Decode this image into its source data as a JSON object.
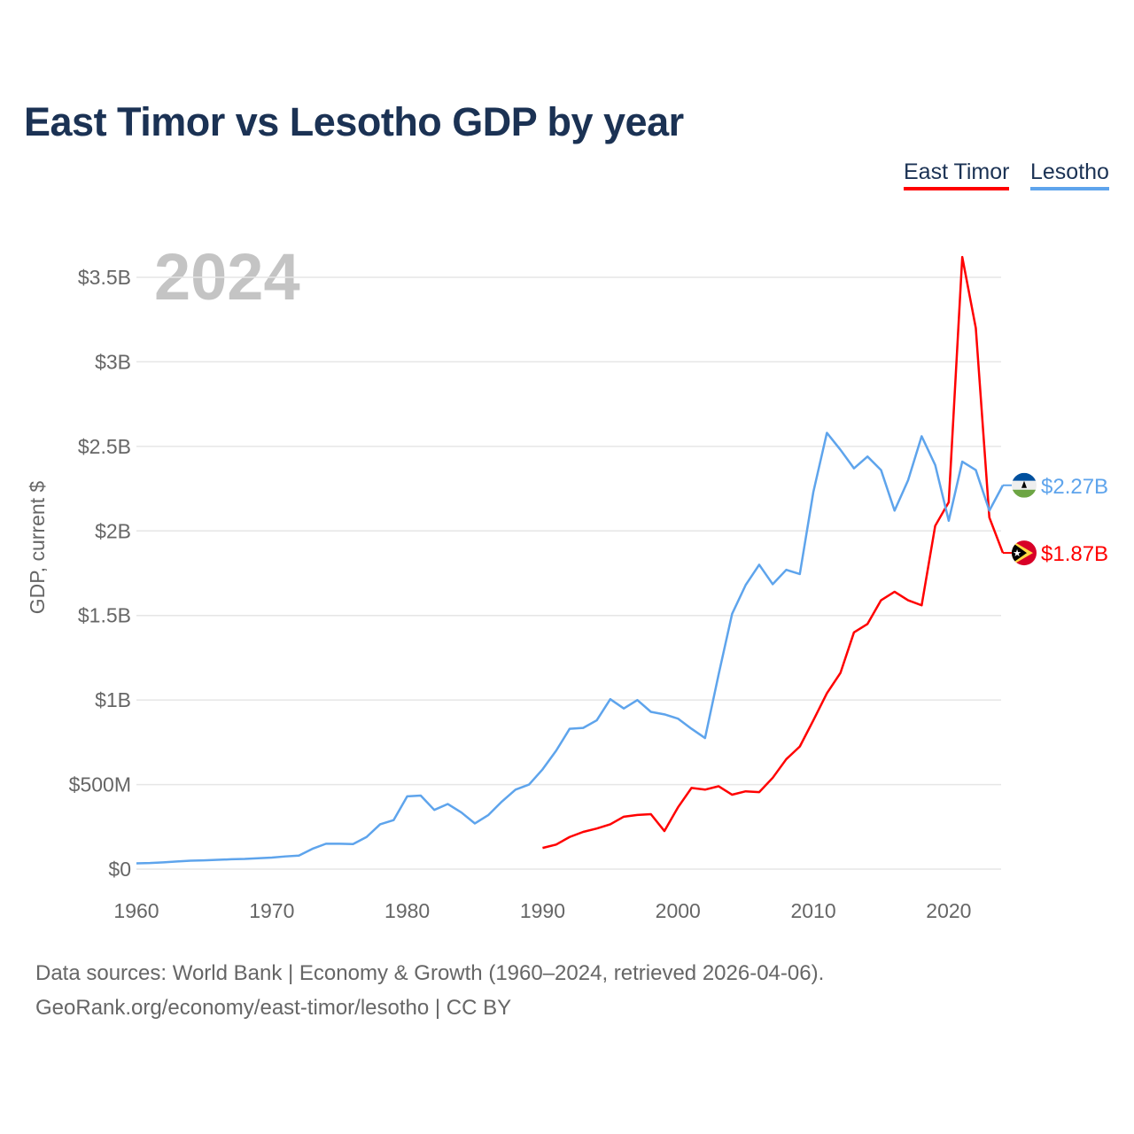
{
  "chart_data": {
    "type": "line",
    "title": "East Timor vs Lesotho GDP by year",
    "ylabel": "GDP, current $",
    "xlabel": "",
    "year_label": "2024",
    "xlim": [
      1960,
      2024
    ],
    "ylim": [
      0,
      3.5
    ],
    "x_ticks": [
      1960,
      1970,
      1980,
      1990,
      2000,
      2010,
      2020
    ],
    "x_tick_labels": [
      "1960",
      "1970",
      "1980",
      "1990",
      "2000",
      "2010",
      "2020"
    ],
    "y_ticks": [
      0,
      0.5,
      1,
      1.5,
      2,
      2.5,
      3,
      3.5
    ],
    "y_tick_labels": [
      "$0",
      "$500M",
      "$1B",
      "$1.5B",
      "$2B",
      "$2.5B",
      "$3B",
      "$3.5B"
    ],
    "grid": true,
    "legend_position": "top-right",
    "units": "billions USD",
    "series": [
      {
        "name": "East Timor",
        "color": "#ff0000",
        "end_label": "$1.87B",
        "flag": "east-timor-flag",
        "start_year": 1990,
        "values": [
          0.125,
          0.145,
          0.19,
          0.22,
          0.24,
          0.265,
          0.31,
          0.32,
          0.325,
          0.225,
          0.365,
          0.48,
          0.47,
          0.49,
          0.44,
          0.46,
          0.455,
          0.54,
          0.65,
          0.725,
          0.88,
          1.04,
          1.16,
          1.4,
          1.45,
          1.59,
          1.64,
          1.59,
          1.56,
          2.03,
          2.17,
          3.62,
          3.2,
          2.08,
          1.87
        ]
      },
      {
        "name": "Lesotho",
        "color": "#5ea4ec",
        "end_label": "$2.27B",
        "flag": "lesotho-flag",
        "start_year": 1960,
        "values": [
          0.034,
          0.036,
          0.04,
          0.045,
          0.05,
          0.052,
          0.055,
          0.058,
          0.06,
          0.064,
          0.068,
          0.075,
          0.08,
          0.12,
          0.15,
          0.15,
          0.148,
          0.19,
          0.265,
          0.29,
          0.43,
          0.435,
          0.35,
          0.385,
          0.335,
          0.27,
          0.32,
          0.4,
          0.47,
          0.5,
          0.59,
          0.7,
          0.83,
          0.835,
          0.88,
          1.005,
          0.95,
          1.0,
          0.93,
          0.915,
          0.89,
          0.83,
          0.775,
          1.15,
          1.51,
          1.68,
          1.8,
          1.685,
          1.77,
          1.745,
          2.23,
          2.58,
          2.48,
          2.37,
          2.44,
          2.36,
          2.12,
          2.3,
          2.56,
          2.39,
          2.06,
          2.41,
          2.36,
          2.12,
          2.27
        ]
      }
    ]
  },
  "footer": {
    "line1": "Data sources: World Bank | Economy & Growth (1960–2024, retrieved 2026-04-06).",
    "line2": "GeoRank.org/economy/east-timor/lesotho | CC BY"
  }
}
